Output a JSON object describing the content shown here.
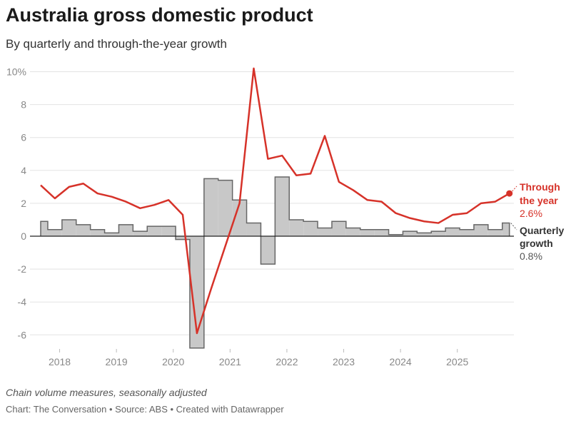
{
  "header": {
    "title": "Australia gross domestic product",
    "subtitle": "By quarterly and through-the-year growth"
  },
  "footer": {
    "note": "Chain volume measures, seasonally adjusted",
    "credit": "Chart: The Conversation • Source: ABS • Created with Datawrapper"
  },
  "chart_data": {
    "type": "line+bar",
    "title": "Australia gross domestic product",
    "subtitle": "By quarterly and through-the-year growth",
    "xlabel": "",
    "ylabel": "",
    "ylim": [
      -7,
      10
    ],
    "y_ticks": [
      "10%",
      "8",
      "6",
      "4",
      "2",
      "0",
      "-2",
      "-4",
      "-6"
    ],
    "y_tick_values": [
      10,
      8,
      6,
      4,
      2,
      0,
      -2,
      -4,
      -6
    ],
    "x_ticks": [
      "2018",
      "2019",
      "2020",
      "2021",
      "2022",
      "2023",
      "2024",
      "2025"
    ],
    "grid": true,
    "x": [
      "Sep 2017",
      "Dec 2017",
      "Mar 2018",
      "Jun 2018",
      "Sep 2018",
      "Dec 2018",
      "Mar 2019",
      "Jun 2019",
      "Sep 2019",
      "Dec 2019",
      "Mar 2020",
      "Jun 2020",
      "Sep 2020",
      "Dec 2020",
      "Mar 2021",
      "Jun 2021",
      "Sep 2021",
      "Dec 2021",
      "Mar 2022",
      "Jun 2022",
      "Sep 2022",
      "Dec 2022",
      "Mar 2023",
      "Jun 2023",
      "Sep 2023",
      "Dec 2023",
      "Mar 2024",
      "Jun 2024",
      "Sep 2024",
      "Dec 2024",
      "Mar 2025",
      "Jun 2025",
      "Sep 2025",
      "Dec 2025"
    ],
    "series": [
      {
        "name": "Through the year",
        "type": "line",
        "color": "#d63229",
        "last_label": "2.6%",
        "values": [
          3.1,
          2.3,
          3.0,
          3.2,
          2.6,
          2.4,
          2.1,
          1.7,
          1.9,
          2.2,
          1.3,
          -5.9,
          -3.2,
          -0.6,
          2.0,
          10.2,
          4.7,
          4.9,
          3.7,
          3.8,
          6.1,
          3.3,
          2.8,
          2.2,
          2.1,
          1.4,
          1.1,
          0.9,
          0.8,
          1.3,
          1.4,
          2.0,
          2.1,
          2.6
        ]
      },
      {
        "name": "Quarterly growth",
        "type": "step-area",
        "color": "#c8c8c8",
        "last_label": "0.8%",
        "values": [
          0.9,
          0.4,
          1.0,
          0.7,
          0.4,
          0.2,
          0.7,
          0.3,
          0.6,
          0.6,
          -0.2,
          -6.8,
          3.5,
          3.4,
          2.2,
          0.8,
          -1.7,
          3.6,
          1.0,
          0.9,
          0.5,
          0.9,
          0.5,
          0.4,
          0.4,
          0.1,
          0.3,
          0.2,
          0.3,
          0.5,
          0.4,
          0.7,
          0.4,
          0.8
        ]
      }
    ],
    "labels": {
      "line_name_lines": [
        "Through",
        "the year"
      ],
      "bar_name_lines": [
        "Quarterly",
        "growth"
      ]
    }
  }
}
